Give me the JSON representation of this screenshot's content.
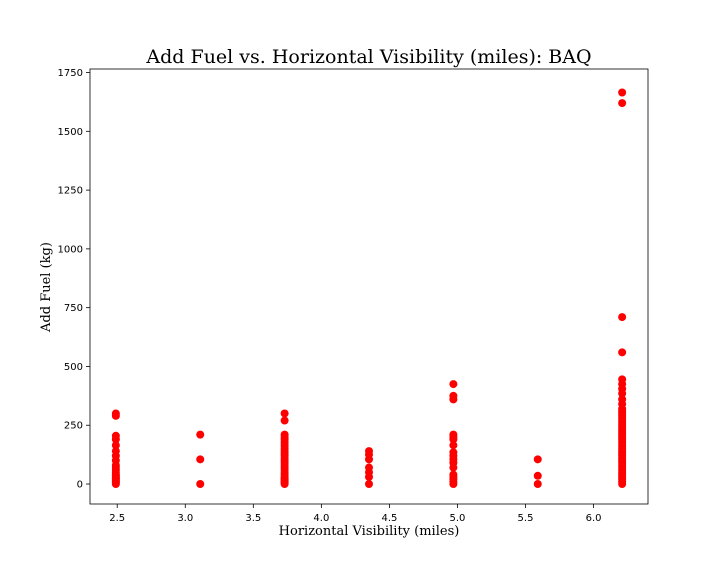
{
  "chart_data": {
    "type": "scatter",
    "title": "Add Fuel vs. Horizontal Visibility (miles): BAQ",
    "xlabel": "Horizontal Visibility (miles)",
    "ylabel": "Add Fuel (kg)",
    "xlim": [
      2.3,
      6.4
    ],
    "ylim": [
      -85,
      1765
    ],
    "xticks": [
      2.5,
      3.0,
      3.5,
      4.0,
      4.5,
      5.0,
      5.5,
      6.0
    ],
    "xtick_labels": [
      "2.5",
      "3.0",
      "3.5",
      "4.0",
      "4.5",
      "5.0",
      "5.5",
      "6.0"
    ],
    "yticks": [
      0,
      250,
      500,
      750,
      1000,
      1250,
      1500,
      1750
    ],
    "ytick_labels": [
      "0",
      "250",
      "500",
      "750",
      "1000",
      "1250",
      "1500",
      "1750"
    ],
    "grid": false,
    "marker_color": "#ff0000",
    "series": [
      {
        "points": [
          [
            2.49,
            0
          ],
          [
            2.49,
            5
          ],
          [
            2.49,
            10
          ],
          [
            2.49,
            15
          ],
          [
            2.49,
            20
          ],
          [
            2.49,
            25
          ],
          [
            2.49,
            30
          ],
          [
            2.49,
            35
          ],
          [
            2.49,
            40
          ],
          [
            2.49,
            50
          ],
          [
            2.49,
            60
          ],
          [
            2.49,
            70
          ],
          [
            2.49,
            80
          ],
          [
            2.49,
            100
          ],
          [
            2.49,
            120
          ],
          [
            2.49,
            140
          ],
          [
            2.49,
            165
          ],
          [
            2.49,
            190
          ],
          [
            2.49,
            205
          ],
          [
            2.49,
            290
          ],
          [
            2.49,
            300
          ],
          [
            3.11,
            0
          ],
          [
            3.11,
            105
          ],
          [
            3.11,
            210
          ],
          [
            3.73,
            0
          ],
          [
            3.73,
            5
          ],
          [
            3.73,
            10
          ],
          [
            3.73,
            15
          ],
          [
            3.73,
            20
          ],
          [
            3.73,
            25
          ],
          [
            3.73,
            30
          ],
          [
            3.73,
            40
          ],
          [
            3.73,
            50
          ],
          [
            3.73,
            60
          ],
          [
            3.73,
            70
          ],
          [
            3.73,
            80
          ],
          [
            3.73,
            90
          ],
          [
            3.73,
            100
          ],
          [
            3.73,
            110
          ],
          [
            3.73,
            120
          ],
          [
            3.73,
            130
          ],
          [
            3.73,
            140
          ],
          [
            3.73,
            150
          ],
          [
            3.73,
            160
          ],
          [
            3.73,
            170
          ],
          [
            3.73,
            180
          ],
          [
            3.73,
            190
          ],
          [
            3.73,
            200
          ],
          [
            3.73,
            210
          ],
          [
            3.73,
            270
          ],
          [
            3.73,
            300
          ],
          [
            4.35,
            0
          ],
          [
            4.35,
            30
          ],
          [
            4.35,
            50
          ],
          [
            4.35,
            70
          ],
          [
            4.35,
            105
          ],
          [
            4.35,
            125
          ],
          [
            4.35,
            140
          ],
          [
            4.97,
            0
          ],
          [
            4.97,
            10
          ],
          [
            4.97,
            20
          ],
          [
            4.97,
            30
          ],
          [
            4.97,
            40
          ],
          [
            4.97,
            70
          ],
          [
            4.97,
            90
          ],
          [
            4.97,
            105
          ],
          [
            4.97,
            120
          ],
          [
            4.97,
            135
          ],
          [
            4.97,
            165
          ],
          [
            4.97,
            190
          ],
          [
            4.97,
            200
          ],
          [
            4.97,
            210
          ],
          [
            4.97,
            360
          ],
          [
            4.97,
            375
          ],
          [
            4.97,
            425
          ],
          [
            5.59,
            0
          ],
          [
            5.59,
            35
          ],
          [
            5.59,
            105
          ],
          [
            6.21,
            0
          ],
          [
            6.21,
            10
          ],
          [
            6.21,
            20
          ],
          [
            6.21,
            30
          ],
          [
            6.21,
            40
          ],
          [
            6.21,
            50
          ],
          [
            6.21,
            60
          ],
          [
            6.21,
            70
          ],
          [
            6.21,
            80
          ],
          [
            6.21,
            90
          ],
          [
            6.21,
            100
          ],
          [
            6.21,
            110
          ],
          [
            6.21,
            120
          ],
          [
            6.21,
            130
          ],
          [
            6.21,
            140
          ],
          [
            6.21,
            150
          ],
          [
            6.21,
            160
          ],
          [
            6.21,
            170
          ],
          [
            6.21,
            180
          ],
          [
            6.21,
            190
          ],
          [
            6.21,
            200
          ],
          [
            6.21,
            210
          ],
          [
            6.21,
            220
          ],
          [
            6.21,
            230
          ],
          [
            6.21,
            240
          ],
          [
            6.21,
            250
          ],
          [
            6.21,
            260
          ],
          [
            6.21,
            270
          ],
          [
            6.21,
            280
          ],
          [
            6.21,
            290
          ],
          [
            6.21,
            300
          ],
          [
            6.21,
            310
          ],
          [
            6.21,
            320
          ],
          [
            6.21,
            340
          ],
          [
            6.21,
            360
          ],
          [
            6.21,
            385
          ],
          [
            6.21,
            405
          ],
          [
            6.21,
            425
          ],
          [
            6.21,
            445
          ],
          [
            6.21,
            560
          ],
          [
            6.21,
            710
          ],
          [
            6.21,
            1620
          ],
          [
            6.21,
            1665
          ]
        ]
      }
    ]
  }
}
